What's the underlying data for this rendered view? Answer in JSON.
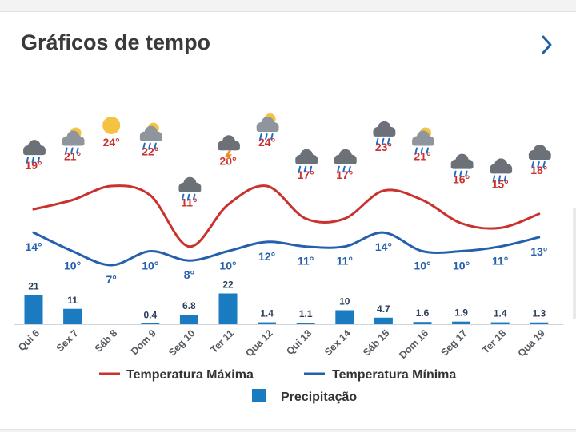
{
  "header": {
    "title": "Gráficos de tempo",
    "chevron_icon": "chevron-right-icon"
  },
  "colors": {
    "max": "#c9322f",
    "min": "#2660ad",
    "precip": "#1b7bc1",
    "label_dark": "#2c3e5a"
  },
  "chart_data": {
    "type": "line",
    "categories": [
      "Qui 6",
      "Sex 7",
      "Sáb 8",
      "Dom 9",
      "Seg 10",
      "Ter 11",
      "Qua 12",
      "Qui 13",
      "Sex 14",
      "Sáb 15",
      "Dom 16",
      "Seg 17",
      "Ter 18",
      "Qua 19"
    ],
    "icons": [
      "rain-cloud-icon",
      "sun-cloud-rain-icon",
      "sun-icon",
      "sun-cloud-rain-icon",
      "rain-cloud-icon",
      "thunderstorm-icon",
      "sun-cloud-rain-icon",
      "rain-cloud-icon",
      "rain-cloud-icon",
      "rain-cloud-icon",
      "sun-cloud-rain-icon",
      "rain-cloud-icon",
      "rain-cloud-icon",
      "rain-cloud-icon"
    ],
    "series": [
      {
        "name": "Temperatura Máxima",
        "type": "line",
        "values": [
          19,
          21,
          24,
          22,
          11,
          20,
          24,
          17,
          17,
          23,
          21,
          16,
          15,
          18
        ],
        "labels": [
          "19°",
          "21°",
          "24°",
          "22°",
          "11°",
          "20°",
          "24°",
          "17°",
          "17°",
          "23°",
          "21°",
          "16°",
          "15°",
          "18°"
        ]
      },
      {
        "name": "Temperatura Mínima",
        "type": "line",
        "values": [
          14,
          10,
          7,
          10,
          8,
          10,
          12,
          11,
          11,
          14,
          10,
          10,
          11,
          13
        ],
        "labels": [
          "14°",
          "10°",
          "7°",
          "10°",
          "8°",
          "10°",
          "12°",
          "11°",
          "11°",
          "14°",
          "10°",
          "10°",
          "11°",
          "13°"
        ]
      },
      {
        "name": "Precipitação",
        "type": "bar",
        "values": [
          21,
          11,
          0,
          0.4,
          6.8,
          22,
          1.4,
          1.1,
          10,
          4.7,
          1.6,
          1.9,
          1.4,
          1.3
        ],
        "labels": [
          "21",
          "11",
          "",
          "0.4",
          "6.8",
          "22",
          "1.4",
          "1.1",
          "10",
          "4.7",
          "1.6",
          "1.9",
          "1.4",
          "1.3"
        ]
      }
    ],
    "legend": {
      "position": "bottom"
    }
  }
}
